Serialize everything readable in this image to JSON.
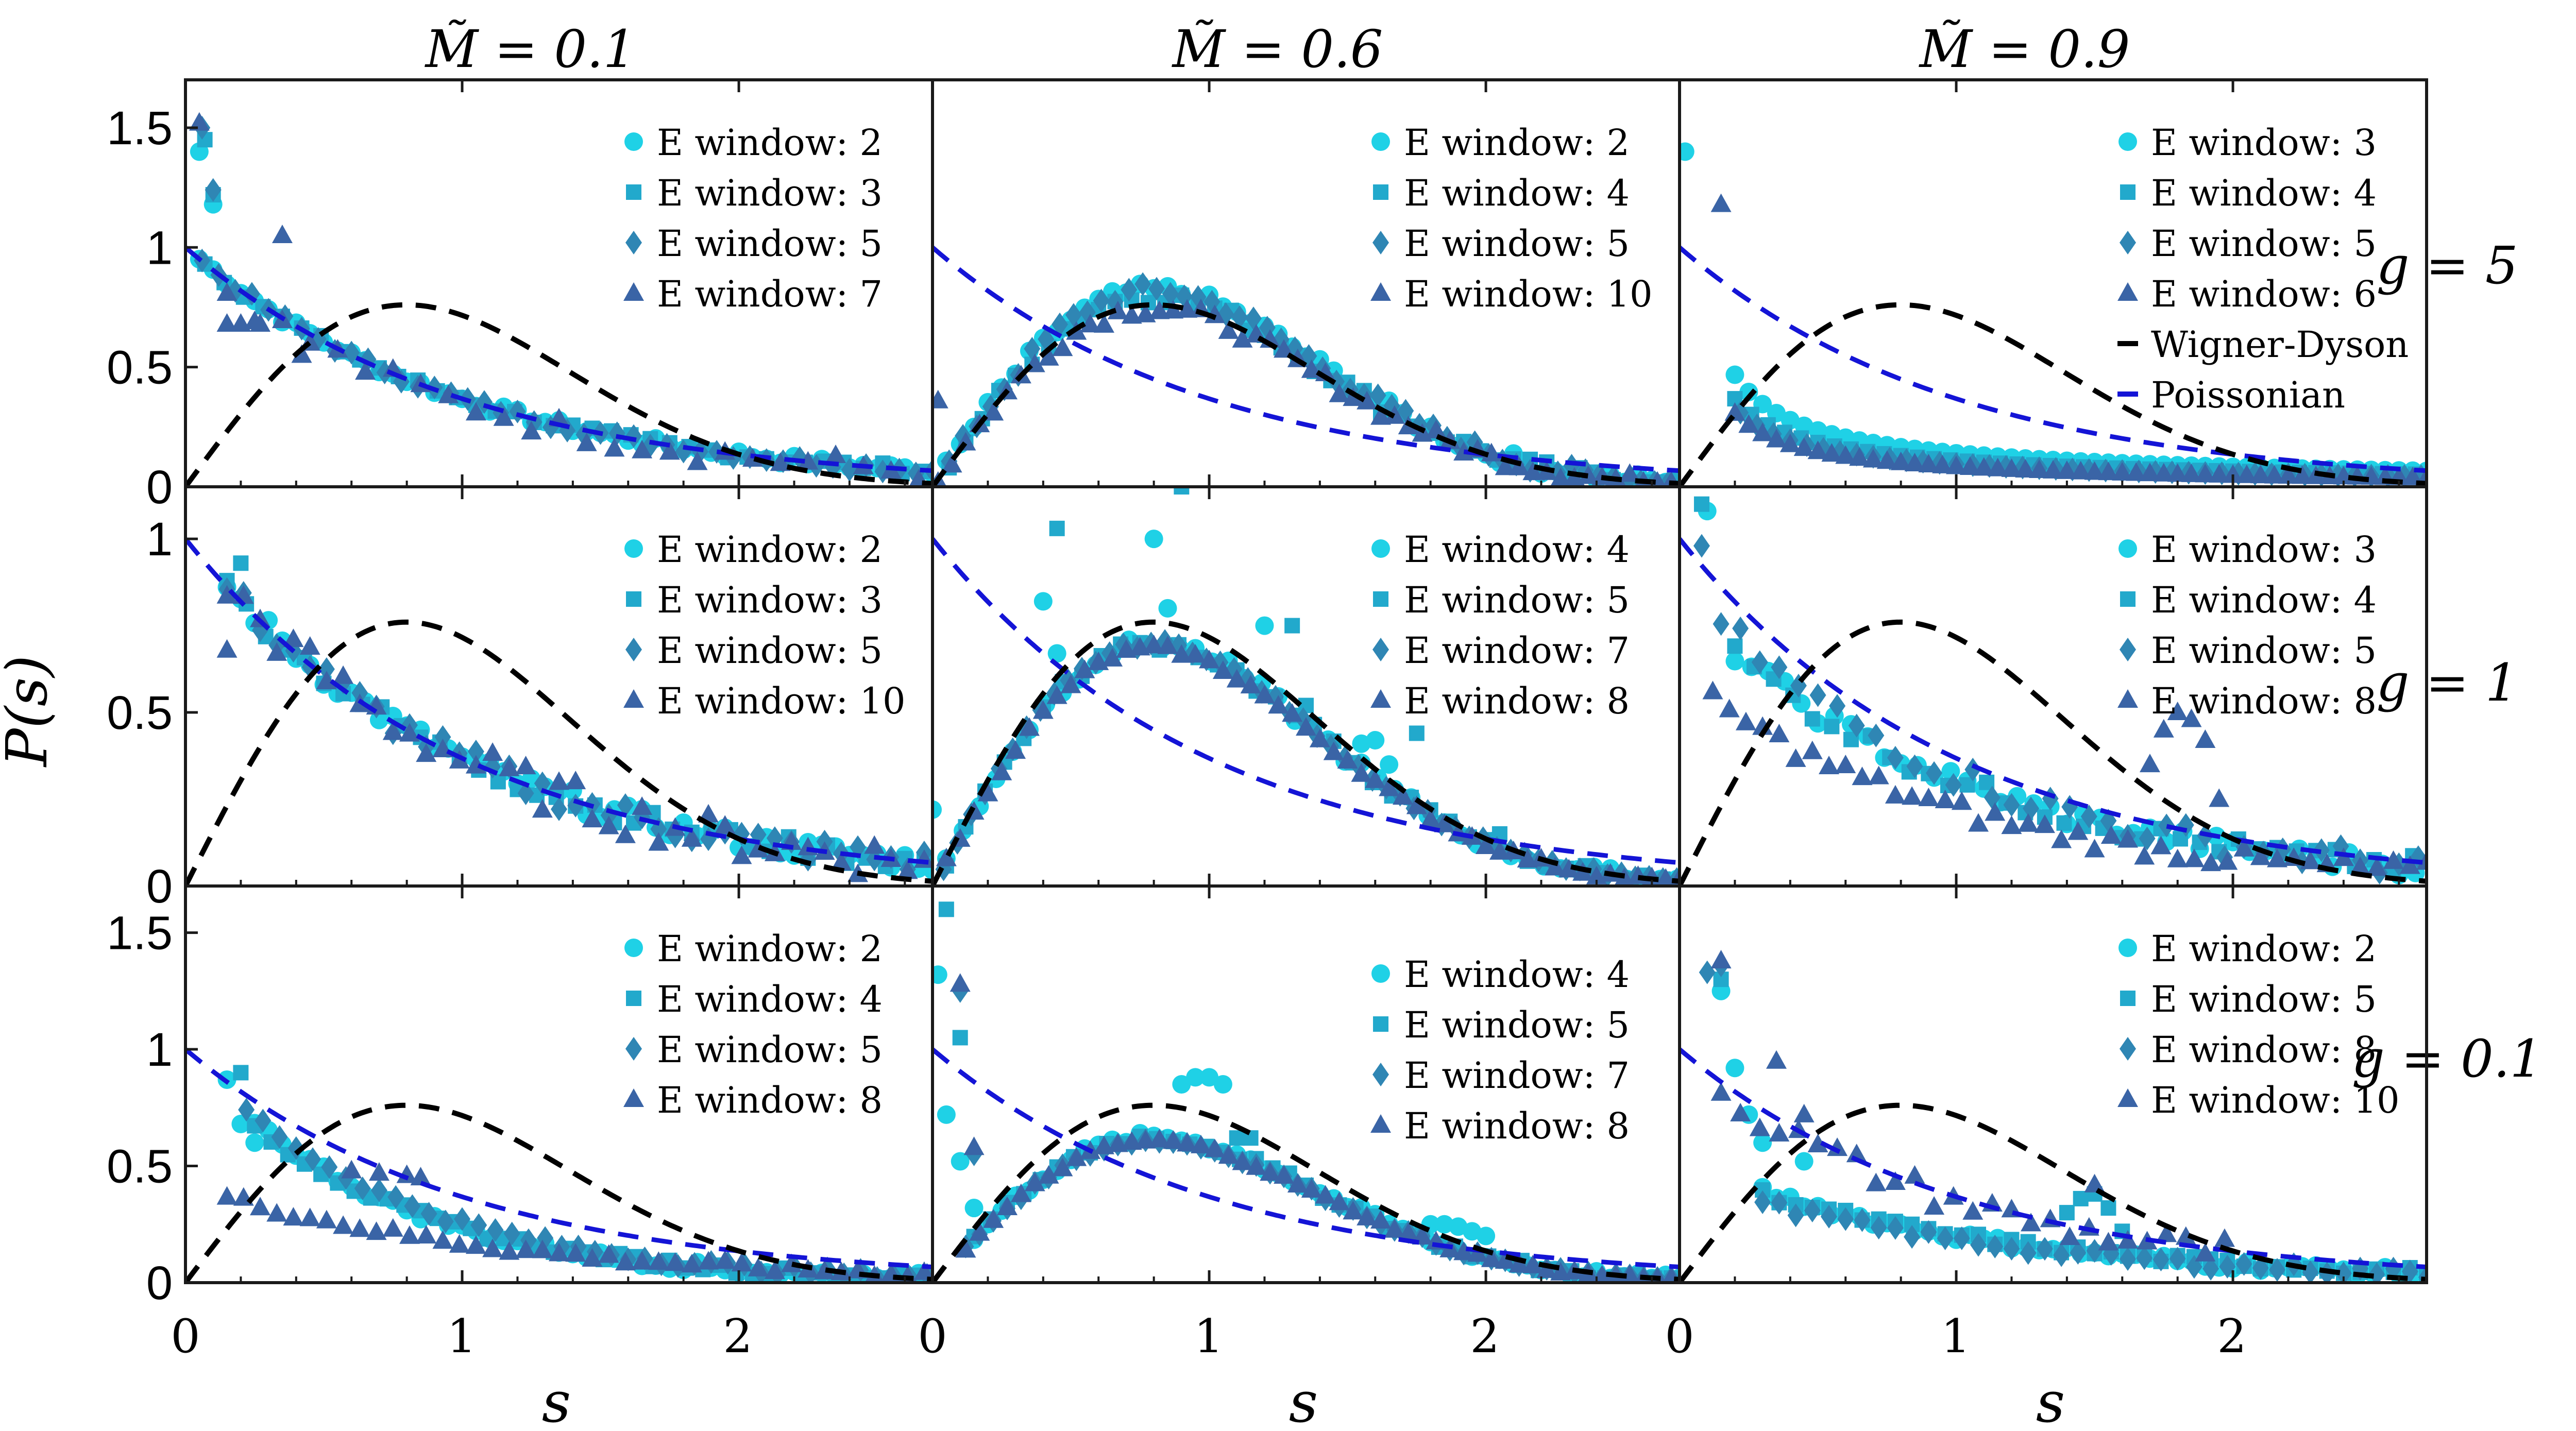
{
  "figure": {
    "ylabel": "P(s)",
    "xlabel": "s",
    "column_titles": [
      "M̃ = 0.1",
      "M̃ = 0.6",
      "M̃ = 0.9"
    ],
    "row_labels": [
      "g = 5",
      "g = 1",
      "g = 0.1"
    ],
    "xticks": [
      "0",
      "1",
      "2"
    ],
    "reference_legend": [
      "Wigner-Dyson",
      "Poissonian"
    ]
  },
  "colors": {
    "w_a": "#1fd1e6",
    "w_b": "#22a9cc",
    "w_c": "#2f86b4",
    "w_d": "#3a64a6",
    "wigner": "#000000",
    "poisson": "#1414d6",
    "frame": "#1a1a1a"
  },
  "chart_data": [
    {
      "type": "scatter",
      "panel": "M=0.1, g=5",
      "xlim": [
        0,
        2.7
      ],
      "ylim": [
        0,
        1.7
      ],
      "yticks": [
        "0",
        "0.5",
        "1",
        "1.5"
      ],
      "legend": [
        "E window: 2",
        "E window: 3",
        "E window: 5",
        "E window: 7"
      ],
      "legend_pos": "top-right",
      "series": [
        {
          "name": "E window: 2",
          "marker": "circle",
          "profile": "poisson",
          "scale": 1.0,
          "noise": 0.02,
          "x0": 0.05,
          "dx": 0.05,
          "x1": 2.7,
          "extra": [
            [
              0.05,
              1.4
            ],
            [
              0.1,
              1.18
            ]
          ]
        },
        {
          "name": "E window: 3",
          "marker": "square",
          "profile": "poisson",
          "scale": 1.0,
          "noise": 0.02,
          "x0": 0.07,
          "dx": 0.07,
          "x1": 2.7,
          "extra": [
            [
              0.07,
              1.45
            ],
            [
              0.1,
              1.22
            ]
          ]
        },
        {
          "name": "E window: 5",
          "marker": "diamond",
          "profile": "poisson",
          "scale": 1.0,
          "noise": 0.02,
          "x0": 0.06,
          "dx": 0.06,
          "x1": 2.7,
          "extra": [
            [
              0.06,
              1.5
            ],
            [
              0.1,
              1.24
            ]
          ]
        },
        {
          "name": "E window: 7",
          "marker": "triangle",
          "profile": "poisson",
          "scale": 0.95,
          "noise": 0.05,
          "x0": 0.15,
          "dx": 0.1,
          "x1": 2.7,
          "extra": [
            [
              0.05,
              1.52
            ],
            [
              0.15,
              0.68
            ],
            [
              0.2,
              0.68
            ],
            [
              0.27,
              0.68
            ],
            [
              0.35,
              1.05
            ],
            [
              0.42,
              0.55
            ]
          ]
        }
      ]
    },
    {
      "type": "scatter",
      "panel": "M=0.6, g=5",
      "xlim": [
        0,
        2.7
      ],
      "ylim": [
        0,
        1.7
      ],
      "yticks": [],
      "legend": [
        "E window: 2",
        "E window: 4",
        "E window: 5",
        "E window: 10"
      ],
      "legend_pos": "top-right",
      "series": [
        {
          "name": "E window: 2",
          "marker": "circle",
          "profile": "wigner",
          "scale": 1.08,
          "noise": 0.03,
          "x0": 0.05,
          "dx": 0.05,
          "x1": 2.7,
          "extra": []
        },
        {
          "name": "E window: 4",
          "marker": "square",
          "profile": "wigner",
          "scale": 1.05,
          "noise": 0.03,
          "x0": 0.06,
          "dx": 0.06,
          "x1": 2.7,
          "extra": []
        },
        {
          "name": "E window: 5",
          "marker": "diamond",
          "profile": "wigner",
          "scale": 1.08,
          "noise": 0.03,
          "x0": 0.06,
          "dx": 0.05,
          "x1": 2.7,
          "extra": []
        },
        {
          "name": "E window: 10",
          "marker": "triangle",
          "profile": "wigner",
          "scale": 0.98,
          "noise": 0.03,
          "x0": 0.02,
          "dx": 0.05,
          "x1": 2.7,
          "extra": [
            [
              0.02,
              0.36
            ]
          ]
        }
      ]
    },
    {
      "type": "scatter",
      "panel": "M=0.9, g=5",
      "xlim": [
        0,
        2.7
      ],
      "ylim": [
        0,
        1.7
      ],
      "yticks": [],
      "legend": [
        "E window: 3",
        "E window: 4",
        "E window: 5",
        "E window: 6",
        "Wigner-Dyson",
        "Poissonian"
      ],
      "legend_pos": "top-right",
      "series": [
        {
          "name": "E window: 3",
          "marker": "circle",
          "profile": "powerlaw",
          "scale": 0.14,
          "power": 0.75,
          "noise": 0.0,
          "x0": 0.2,
          "dx": 0.05,
          "x1": 2.7,
          "extra": [
            [
              0.02,
              1.4
            ]
          ]
        },
        {
          "name": "E window: 4",
          "marker": "square",
          "profile": "powerlaw",
          "scale": 0.11,
          "power": 0.75,
          "noise": 0.0,
          "x0": 0.2,
          "dx": 0.06,
          "x1": 2.7,
          "extra": []
        },
        {
          "name": "E window: 5",
          "marker": "diamond",
          "profile": "powerlaw",
          "scale": 0.095,
          "power": 0.78,
          "noise": 0.0,
          "x0": 0.22,
          "dx": 0.06,
          "x1": 2.7,
          "extra": []
        },
        {
          "name": "E window: 6",
          "marker": "triangle",
          "profile": "powerlaw",
          "scale": 0.085,
          "power": 0.8,
          "noise": 0.0,
          "x0": 0.2,
          "dx": 0.05,
          "x1": 2.7,
          "extra": [
            [
              0.15,
              1.18
            ]
          ]
        }
      ]
    },
    {
      "type": "scatter",
      "panel": "M=0.1, g=1",
      "xlim": [
        0,
        2.7
      ],
      "ylim": [
        0,
        1.15
      ],
      "yticks": [
        "0",
        "0.5",
        "1"
      ],
      "legend": [
        "E window: 2",
        "E window: 3",
        "E window: 5",
        "E window: 10"
      ],
      "legend_pos": "top-right",
      "series": [
        {
          "name": "E window: 2",
          "marker": "circle",
          "profile": "poisson",
          "scale": 1.0,
          "noise": 0.03,
          "x0": 0.15,
          "dx": 0.05,
          "x1": 2.7,
          "extra": []
        },
        {
          "name": "E window: 3",
          "marker": "square",
          "profile": "poisson",
          "scale": 1.0,
          "noise": 0.03,
          "x0": 0.15,
          "dx": 0.07,
          "x1": 2.7,
          "extra": [
            [
              0.2,
              0.93
            ]
          ]
        },
        {
          "name": "E window: 5",
          "marker": "diamond",
          "profile": "poisson",
          "scale": 1.0,
          "noise": 0.04,
          "x0": 0.15,
          "dx": 0.06,
          "x1": 2.7,
          "extra": []
        },
        {
          "name": "E window: 10",
          "marker": "triangle",
          "profile": "poisson",
          "scale": 1.0,
          "noise": 0.06,
          "x0": 0.15,
          "dx": 0.06,
          "x1": 2.7,
          "extra": [
            [
              0.15,
              0.68
            ]
          ]
        }
      ]
    },
    {
      "type": "scatter",
      "panel": "M=0.6, g=1",
      "xlim": [
        0,
        2.7
      ],
      "ylim": [
        0,
        1.15
      ],
      "yticks": [],
      "legend": [
        "E window: 4",
        "E window: 5",
        "E window: 7",
        "E window: 8"
      ],
      "legend_pos": "top-right",
      "series": [
        {
          "name": "E window: 4",
          "marker": "circle",
          "profile": "wigner",
          "scale": 0.92,
          "noise": 0.02,
          "x0": 0.05,
          "dx": 0.06,
          "x1": 2.7,
          "extra": [
            [
              0.0,
              0.22
            ],
            [
              0.4,
              0.82
            ],
            [
              0.45,
              0.67
            ],
            [
              0.8,
              1.0
            ],
            [
              0.85,
              0.8
            ],
            [
              1.2,
              0.75
            ],
            [
              1.55,
              0.41
            ],
            [
              1.6,
              0.42
            ],
            [
              1.65,
              0.35
            ]
          ]
        },
        {
          "name": "E window: 5",
          "marker": "square",
          "profile": "wigner",
          "scale": 0.92,
          "noise": 0.02,
          "x0": 0.05,
          "dx": 0.07,
          "x1": 2.7,
          "extra": [
            [
              0.45,
              1.03
            ],
            [
              0.9,
              1.15
            ],
            [
              1.3,
              0.75
            ],
            [
              1.35,
              0.52
            ],
            [
              1.75,
              0.44
            ],
            [
              2.05,
              0.15
            ]
          ]
        },
        {
          "name": "E window: 7",
          "marker": "diamond",
          "profile": "wigner",
          "scale": 0.92,
          "noise": 0.01,
          "x0": 0.04,
          "dx": 0.05,
          "x1": 2.7,
          "extra": []
        },
        {
          "name": "E window: 8",
          "marker": "triangle",
          "profile": "wigner",
          "scale": 0.9,
          "noise": 0.01,
          "x0": 0.05,
          "dx": 0.05,
          "x1": 2.7,
          "extra": []
        }
      ]
    },
    {
      "type": "scatter",
      "panel": "M=0.9, g=1",
      "xlim": [
        0,
        2.7
      ],
      "ylim": [
        0,
        1.15
      ],
      "yticks": [],
      "legend": [
        "E window: 3",
        "E window: 4",
        "E window: 5",
        "E window: 8"
      ],
      "legend_pos": "top-right",
      "series": [
        {
          "name": "E window: 3",
          "marker": "circle",
          "profile": "poisson",
          "scale": 0.82,
          "noise": 0.03,
          "x0": 0.2,
          "dx": 0.06,
          "x1": 2.7,
          "extra": [
            [
              0.1,
              1.08
            ]
          ]
        },
        {
          "name": "E window: 4",
          "marker": "square",
          "profile": "poisson",
          "scale": 0.82,
          "noise": 0.03,
          "x0": 0.2,
          "dx": 0.07,
          "x1": 2.7,
          "extra": [
            [
              0.08,
              1.1
            ]
          ]
        },
        {
          "name": "E window: 5",
          "marker": "diamond",
          "profile": "poisson",
          "scale": 0.88,
          "noise": 0.04,
          "x0": 0.15,
          "dx": 0.07,
          "x1": 2.7,
          "extra": [
            [
              0.08,
              0.98
            ]
          ]
        },
        {
          "name": "E window: 8",
          "marker": "triangle",
          "profile": "poisson",
          "scale": 0.6,
          "noise": 0.03,
          "x0": 0.12,
          "dx": 0.06,
          "x1": 2.7,
          "extra": [
            [
              1.75,
              0.45
            ],
            [
              1.8,
              0.5
            ],
            [
              1.85,
              0.48
            ],
            [
              1.9,
              0.42
            ],
            [
              1.95,
              0.25
            ],
            [
              1.7,
              0.35
            ]
          ]
        }
      ]
    },
    {
      "type": "scatter",
      "panel": "M=0.1, g=0.1",
      "xlim": [
        0,
        2.7
      ],
      "ylim": [
        0,
        1.7
      ],
      "yticks": [
        "0",
        "0.5",
        "1",
        "1.5"
      ],
      "legend": [
        "E window: 2",
        "E window: 4",
        "E window: 5",
        "E window: 8"
      ],
      "legend_pos": "top-right",
      "series": [
        {
          "name": "E window: 2",
          "marker": "circle",
          "profile": "decay",
          "scale": 1.0,
          "rate": 1.45,
          "noise": 0.02,
          "x0": 0.25,
          "dx": 0.05,
          "x1": 2.7,
          "extra": [
            [
              0.15,
              0.87
            ],
            [
              0.2,
              0.68
            ],
            [
              0.25,
              0.6
            ]
          ]
        },
        {
          "name": "E window: 4",
          "marker": "square",
          "profile": "decay",
          "scale": 0.95,
          "rate": 1.4,
          "noise": 0.02,
          "x0": 0.25,
          "dx": 0.06,
          "x1": 2.7,
          "extra": [
            [
              0.2,
              0.9
            ]
          ]
        },
        {
          "name": "E window: 5",
          "marker": "diamond",
          "profile": "decay",
          "scale": 1.0,
          "rate": 1.35,
          "noise": 0.02,
          "x0": 0.22,
          "dx": 0.06,
          "x1": 2.7,
          "extra": []
        },
        {
          "name": "E window: 8",
          "marker": "triangle",
          "profile": "decay",
          "scale": 0.42,
          "rate": 0.9,
          "noise": 0.02,
          "x0": 0.15,
          "dx": 0.06,
          "x1": 2.7,
          "extra": [
            [
              0.6,
              0.48
            ],
            [
              0.7,
              0.47
            ],
            [
              0.8,
              0.46
            ],
            [
              0.85,
              0.45
            ]
          ]
        }
      ]
    },
    {
      "type": "scatter",
      "panel": "M=0.6, g=0.1",
      "xlim": [
        0,
        2.7
      ],
      "ylim": [
        0,
        1.7
      ],
      "yticks": [],
      "legend": [
        "E window: 4",
        "E window: 5",
        "E window: 7",
        "E window: 8"
      ],
      "legend_pos": "middle-right",
      "series": [
        {
          "name": "E window: 4",
          "marker": "circle",
          "profile": "wigner",
          "scale": 0.82,
          "noise": 0.02,
          "x0": 0.15,
          "dx": 0.05,
          "x1": 2.7,
          "extra": [
            [
              0.02,
              1.32
            ],
            [
              0.05,
              0.72
            ],
            [
              0.1,
              0.52
            ],
            [
              0.15,
              0.32
            ],
            [
              0.9,
              0.85
            ],
            [
              0.95,
              0.88
            ],
            [
              1.0,
              0.88
            ],
            [
              1.05,
              0.85
            ],
            [
              1.8,
              0.25
            ],
            [
              1.85,
              0.25
            ],
            [
              1.9,
              0.24
            ],
            [
              1.95,
              0.22
            ],
            [
              2.0,
              0.2
            ]
          ]
        },
        {
          "name": "E window: 5",
          "marker": "square",
          "profile": "wigner",
          "scale": 0.82,
          "noise": 0.02,
          "x0": 0.15,
          "dx": 0.06,
          "x1": 2.7,
          "extra": [
            [
              0.05,
              1.6
            ],
            [
              0.1,
              1.05
            ],
            [
              1.1,
              0.62
            ],
            [
              1.15,
              0.62
            ]
          ]
        },
        {
          "name": "E window: 7",
          "marker": "diamond",
          "profile": "wigner",
          "scale": 0.8,
          "noise": 0.01,
          "x0": 0.12,
          "dx": 0.05,
          "x1": 2.7,
          "extra": [
            [
              0.1,
              1.25
            ],
            [
              0.15,
              0.55
            ]
          ]
        },
        {
          "name": "E window: 8",
          "marker": "triangle",
          "profile": "wigner",
          "scale": 0.8,
          "noise": 0.01,
          "x0": 0.12,
          "dx": 0.05,
          "x1": 2.7,
          "extra": [
            [
              0.1,
              1.28
            ],
            [
              0.15,
              0.58
            ]
          ]
        }
      ]
    },
    {
      "type": "scatter",
      "panel": "M=0.9, g=0.1",
      "xlim": [
        0,
        2.7
      ],
      "ylim": [
        0,
        1.7
      ],
      "yticks": [],
      "legend": [
        "E window: 2",
        "E window: 5",
        "E window: 8",
        "E window: 10"
      ],
      "legend_pos": "top-right",
      "series": [
        {
          "name": "E window: 2",
          "marker": "circle",
          "profile": "decay",
          "scale": 0.52,
          "rate": 0.95,
          "noise": 0.02,
          "x0": 0.3,
          "dx": 0.05,
          "x1": 2.7,
          "extra": [
            [
              0.15,
              1.25
            ],
            [
              0.2,
              0.92
            ],
            [
              0.25,
              0.72
            ],
            [
              0.3,
              0.6
            ],
            [
              0.45,
              0.52
            ]
          ]
        },
        {
          "name": "E window: 5",
          "marker": "square",
          "profile": "decay",
          "scale": 0.5,
          "rate": 0.9,
          "noise": 0.02,
          "x0": 0.3,
          "dx": 0.06,
          "x1": 2.7,
          "extra": [
            [
              0.15,
              1.3
            ],
            [
              1.4,
              0.3
            ],
            [
              1.45,
              0.36
            ],
            [
              1.5,
              0.38
            ],
            [
              1.55,
              0.32
            ],
            [
              1.6,
              0.22
            ]
          ]
        },
        {
          "name": "E window: 8",
          "marker": "diamond",
          "profile": "decay",
          "scale": 0.45,
          "rate": 0.9,
          "noise": 0.02,
          "x0": 0.3,
          "dx": 0.06,
          "x1": 2.7,
          "extra": [
            [
              0.1,
              1.33
            ],
            [
              0.15,
              1.36
            ]
          ]
        },
        {
          "name": "E window: 10",
          "marker": "triangle",
          "profile": "poisson",
          "scale": 0.95,
          "noise": 0.06,
          "x0": 0.15,
          "dx": 0.07,
          "x1": 2.0,
          "extra": [
            [
              0.15,
              1.38
            ],
            [
              0.35,
              0.95
            ],
            [
              0.45,
              0.72
            ],
            [
              1.5,
              0.42
            ]
          ]
        }
      ]
    }
  ]
}
